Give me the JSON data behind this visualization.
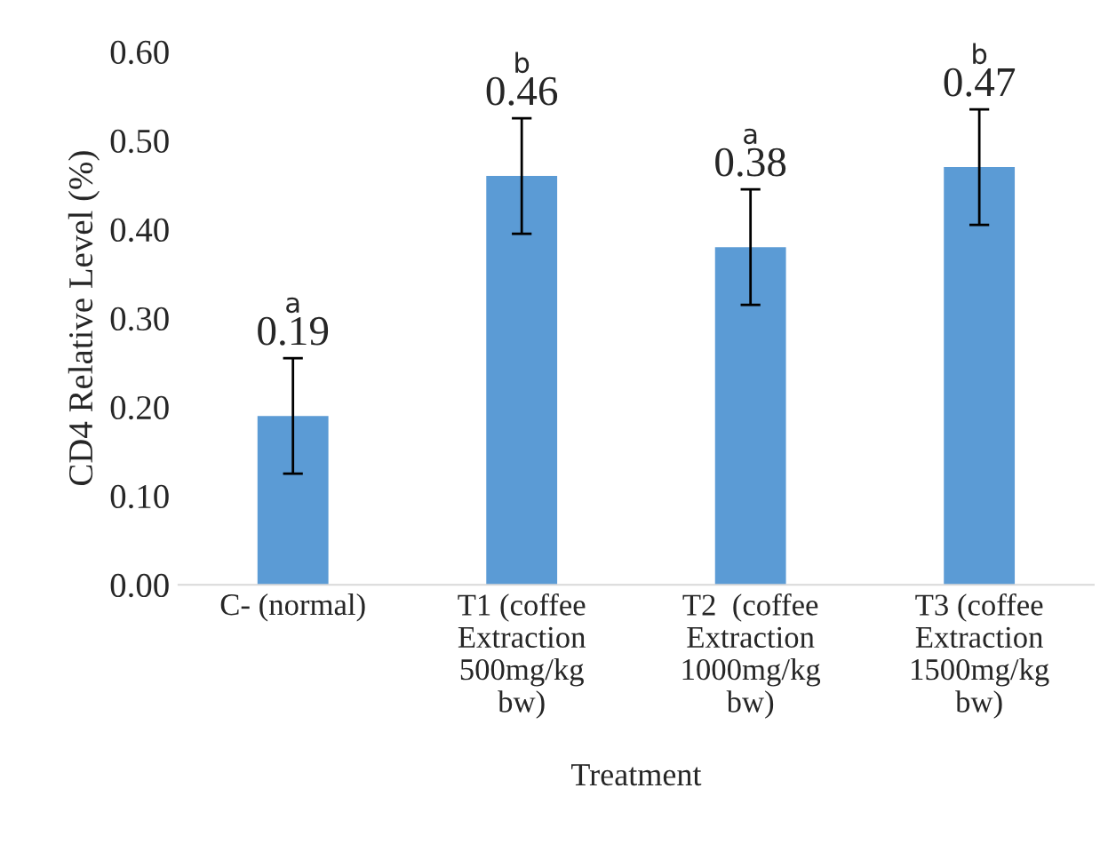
{
  "chart_data": {
    "type": "bar",
    "xlabel": "Treatment",
    "ylabel": "CD4 Relative Level (%)",
    "categories": [
      "C- (normal)",
      "T1 (coffee\nExtraction\n500mg/kg\nbw)",
      "T2  (coffee\nExtraction\n1000mg/kg\nbw)",
      "T3 (coffee\nExtraction\n1500mg/kg\nbw)"
    ],
    "values": [
      0.19,
      0.46,
      0.38,
      0.47
    ],
    "errors": [
      0.065,
      0.065,
      0.065,
      0.065
    ],
    "color": "#5b9bd5",
    "ylim": [
      0,
      0.6
    ],
    "yticks": [
      {
        "value": 0,
        "label": "0.00"
      },
      {
        "value": 0.1,
        "label": "0.10"
      },
      {
        "value": 0.2,
        "label": "0.20"
      },
      {
        "value": 0.3,
        "label": "0.30"
      },
      {
        "value": 0.4,
        "label": "0.40"
      },
      {
        "value": 0.5,
        "label": "0.50"
      },
      {
        "value": 0.6,
        "label": "0.60"
      }
    ],
    "data_labels": true,
    "grid": false,
    "legend": false,
    "annotations": [
      "a",
      "b",
      "a",
      "b"
    ]
  }
}
